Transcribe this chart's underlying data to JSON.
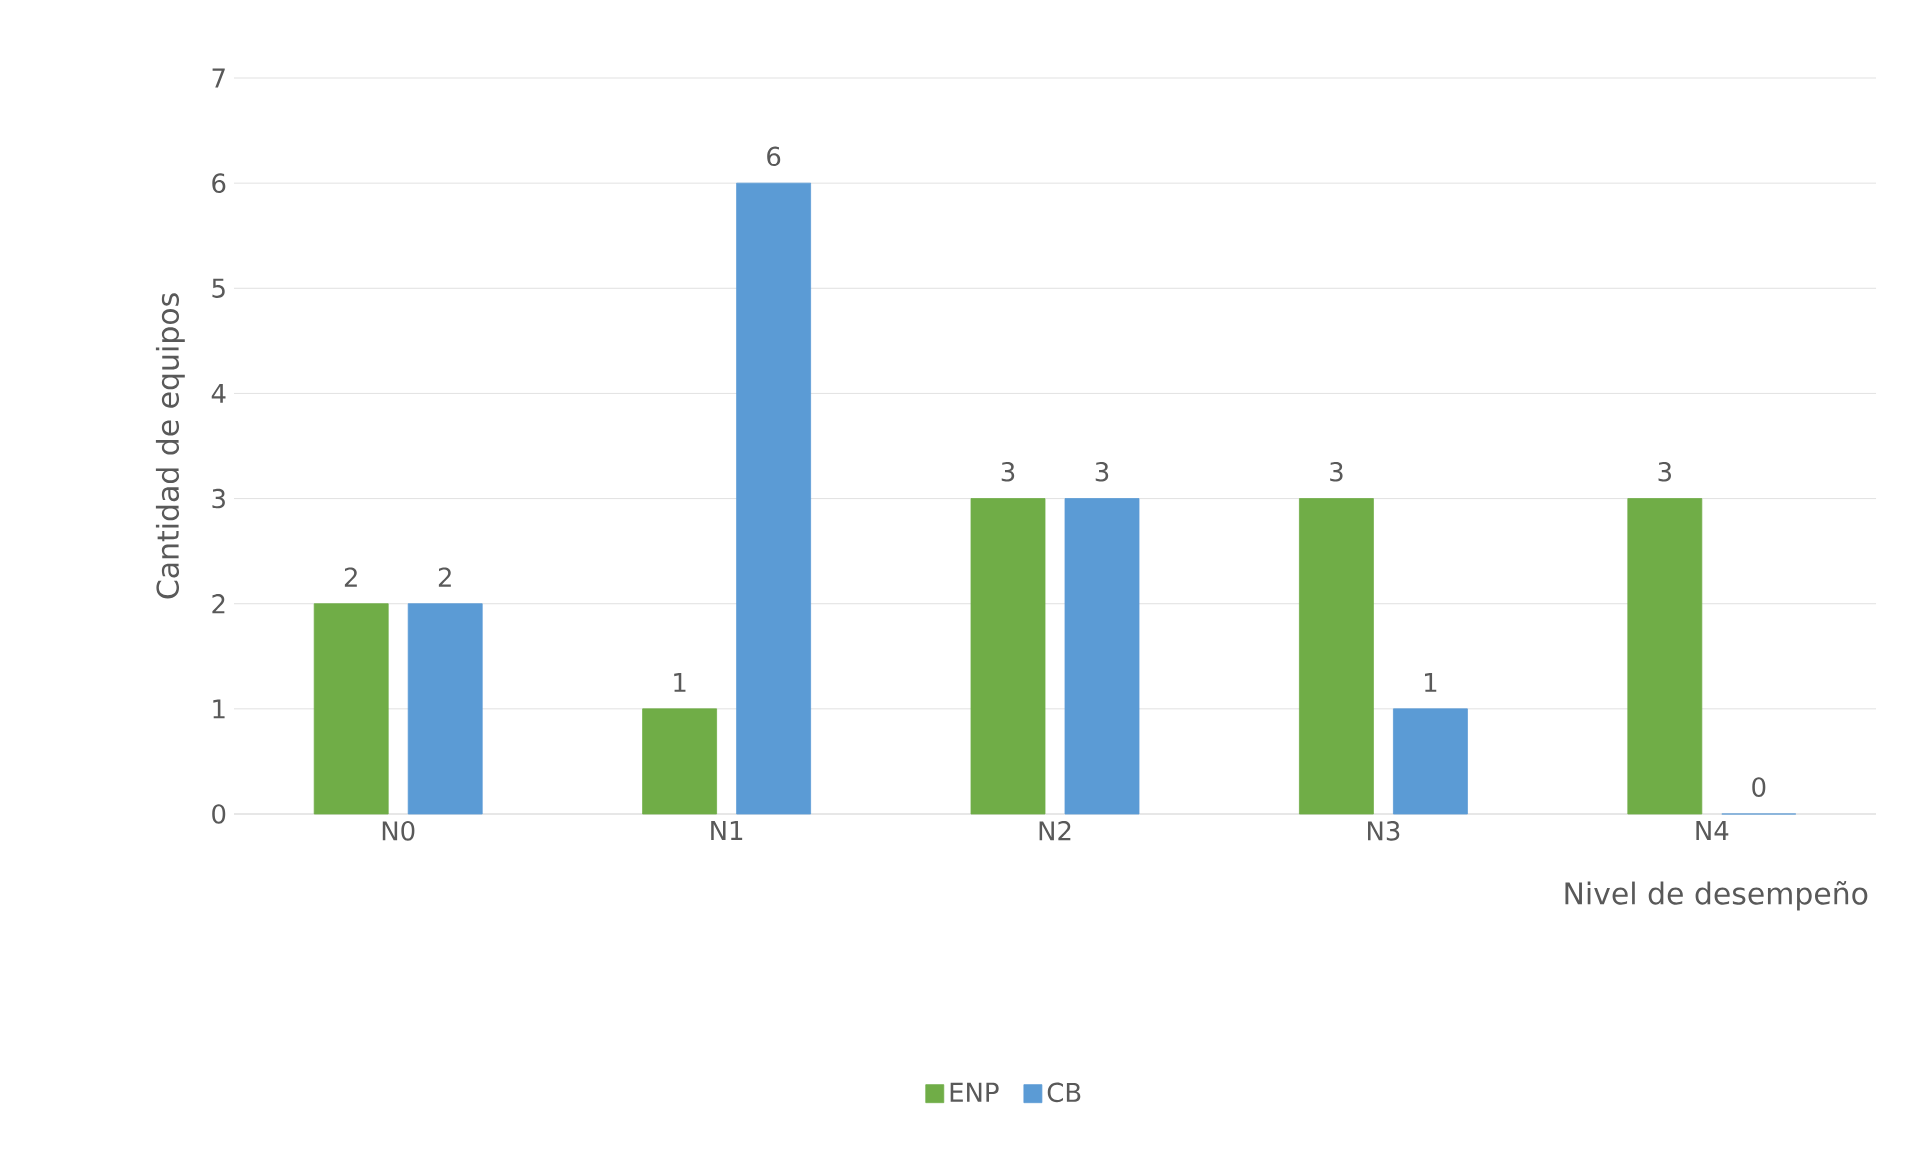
{
  "chart_data": {
    "type": "bar",
    "xlabel": "Nivel de desempeño",
    "ylabel": "Cantidad de equipos",
    "categories": [
      "N0",
      "N1",
      "N2",
      "N3",
      "N4"
    ],
    "series": [
      {
        "name": "ENP",
        "color": "#70ad47",
        "values": [
          2,
          1,
          3,
          3,
          3
        ]
      },
      {
        "name": "CB",
        "color": "#5b9bd5",
        "values": [
          2,
          6,
          3,
          1,
          0
        ]
      }
    ],
    "ylim": [
      0,
      7
    ],
    "yticks": [
      0,
      1,
      2,
      3,
      4,
      5,
      6,
      7
    ],
    "grid": "y",
    "legend": "bottom",
    "data_labels": true
  }
}
